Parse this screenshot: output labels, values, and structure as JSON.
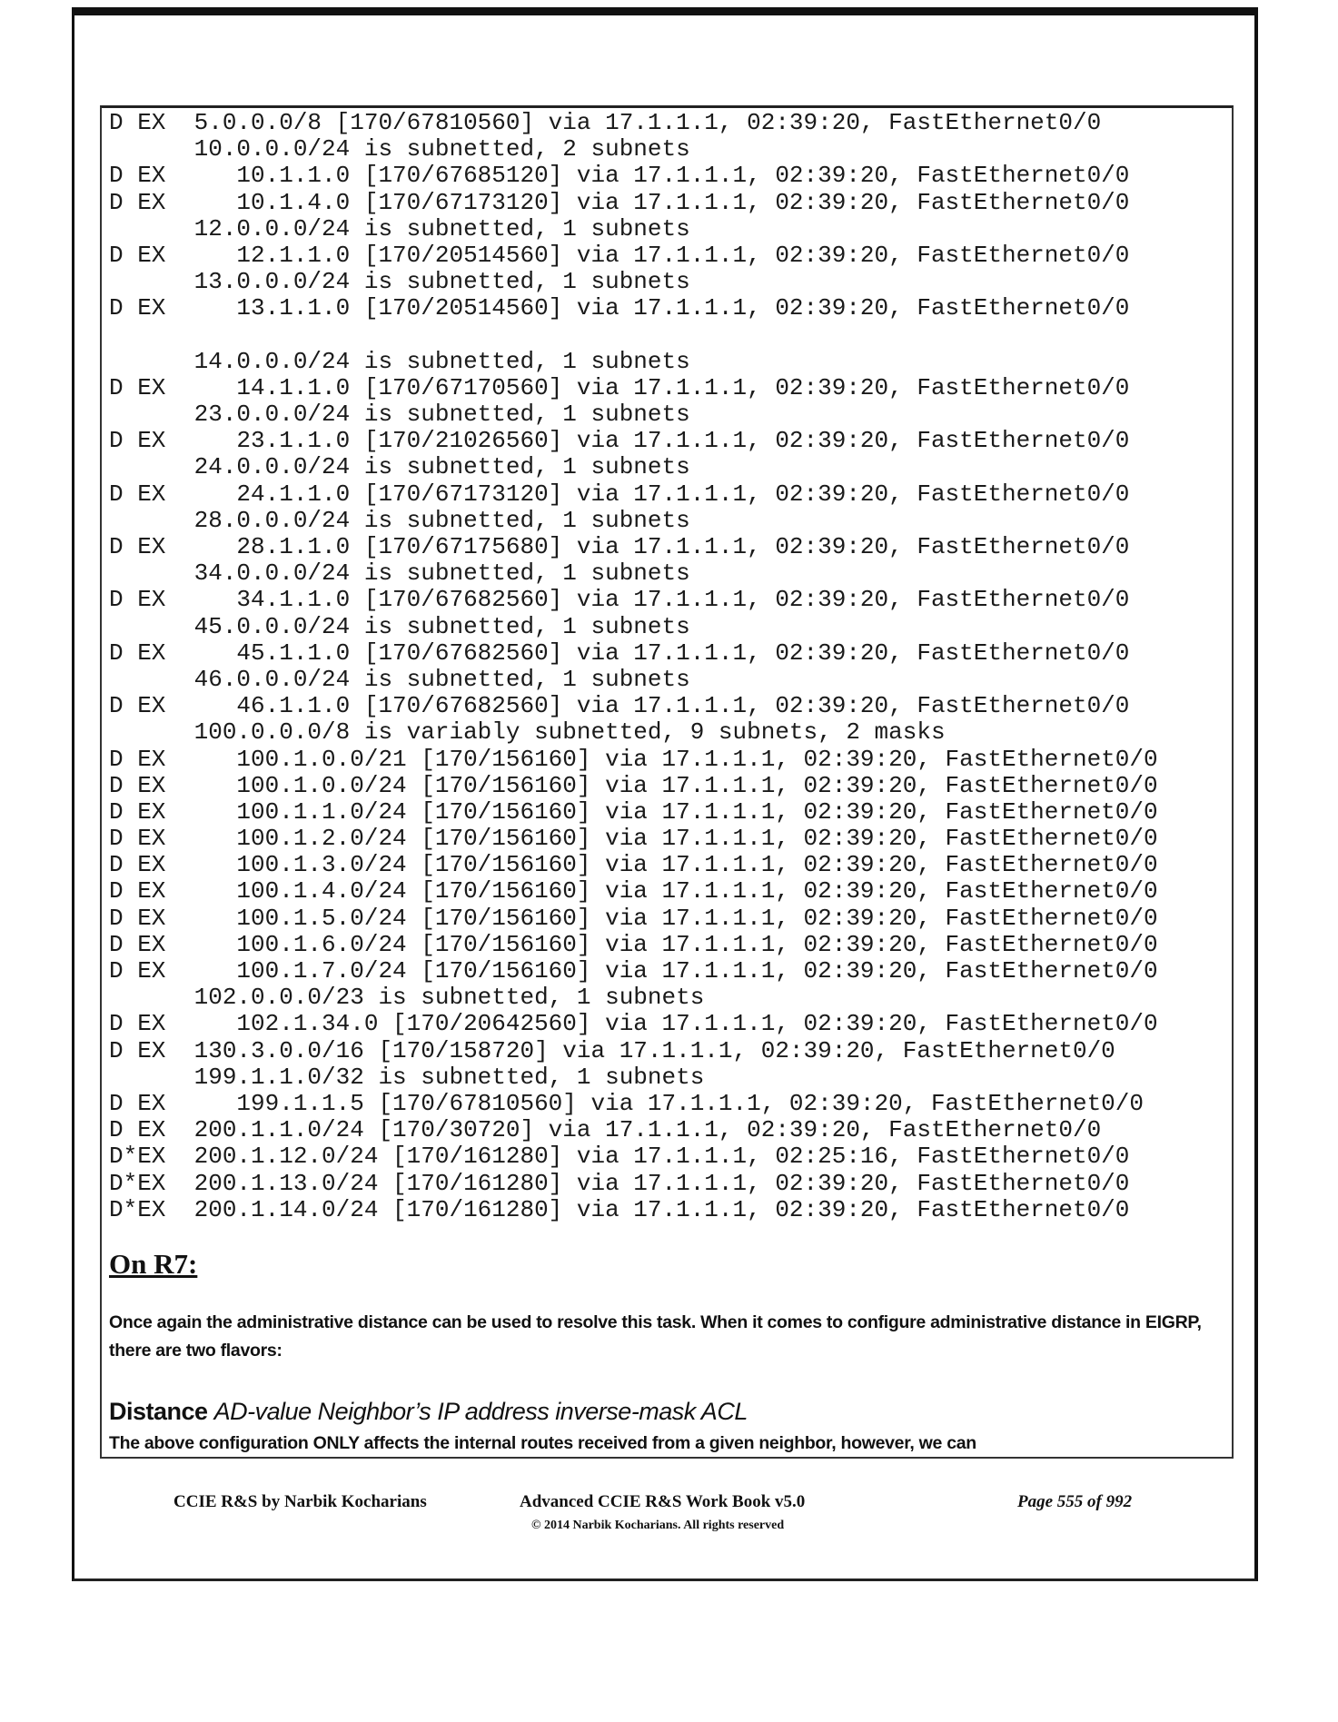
{
  "route_table": {
    "lines": [
      "D EX  5.0.0.0/8 [170/67810560] via 17.1.1.1, 02:39:20, FastEthernet0/0",
      "      10.0.0.0/24 is subnetted, 2 subnets",
      "D EX     10.1.1.0 [170/67685120] via 17.1.1.1, 02:39:20, FastEthernet0/0",
      "D EX     10.1.4.0 [170/67173120] via 17.1.1.1, 02:39:20, FastEthernet0/0",
      "      12.0.0.0/24 is subnetted, 1 subnets",
      "D EX     12.1.1.0 [170/20514560] via 17.1.1.1, 02:39:20, FastEthernet0/0",
      "      13.0.0.0/24 is subnetted, 1 subnets",
      "D EX     13.1.1.0 [170/20514560] via 17.1.1.1, 02:39:20, FastEthernet0/0",
      "",
      "      14.0.0.0/24 is subnetted, 1 subnets",
      "D EX     14.1.1.0 [170/67170560] via 17.1.1.1, 02:39:20, FastEthernet0/0",
      "      23.0.0.0/24 is subnetted, 1 subnets",
      "D EX     23.1.1.0 [170/21026560] via 17.1.1.1, 02:39:20, FastEthernet0/0",
      "      24.0.0.0/24 is subnetted, 1 subnets",
      "D EX     24.1.1.0 [170/67173120] via 17.1.1.1, 02:39:20, FastEthernet0/0",
      "      28.0.0.0/24 is subnetted, 1 subnets",
      "D EX     28.1.1.0 [170/67175680] via 17.1.1.1, 02:39:20, FastEthernet0/0",
      "      34.0.0.0/24 is subnetted, 1 subnets",
      "D EX     34.1.1.0 [170/67682560] via 17.1.1.1, 02:39:20, FastEthernet0/0",
      "      45.0.0.0/24 is subnetted, 1 subnets",
      "D EX     45.1.1.0 [170/67682560] via 17.1.1.1, 02:39:20, FastEthernet0/0",
      "      46.0.0.0/24 is subnetted, 1 subnets",
      "D EX     46.1.1.0 [170/67682560] via 17.1.1.1, 02:39:20, FastEthernet0/0",
      "      100.0.0.0/8 is variably subnetted, 9 subnets, 2 masks",
      "D EX     100.1.0.0/21 [170/156160] via 17.1.1.1, 02:39:20, FastEthernet0/0",
      "D EX     100.1.0.0/24 [170/156160] via 17.1.1.1, 02:39:20, FastEthernet0/0",
      "D EX     100.1.1.0/24 [170/156160] via 17.1.1.1, 02:39:20, FastEthernet0/0",
      "D EX     100.1.2.0/24 [170/156160] via 17.1.1.1, 02:39:20, FastEthernet0/0",
      "D EX     100.1.3.0/24 [170/156160] via 17.1.1.1, 02:39:20, FastEthernet0/0",
      "D EX     100.1.4.0/24 [170/156160] via 17.1.1.1, 02:39:20, FastEthernet0/0",
      "D EX     100.1.5.0/24 [170/156160] via 17.1.1.1, 02:39:20, FastEthernet0/0",
      "D EX     100.1.6.0/24 [170/156160] via 17.1.1.1, 02:39:20, FastEthernet0/0",
      "D EX     100.1.7.0/24 [170/156160] via 17.1.1.1, 02:39:20, FastEthernet0/0",
      "      102.0.0.0/23 is subnetted, 1 subnets",
      "D EX     102.1.34.0 [170/20642560] via 17.1.1.1, 02:39:20, FastEthernet0/0",
      "D EX  130.3.0.0/16 [170/158720] via 17.1.1.1, 02:39:20, FastEthernet0/0",
      "      199.1.1.0/32 is subnetted, 1 subnets",
      "D EX     199.1.1.5 [170/67810560] via 17.1.1.1, 02:39:20, FastEthernet0/0",
      "D EX  200.1.1.0/24 [170/30720] via 17.1.1.1, 02:39:20, FastEthernet0/0",
      "D*EX  200.1.12.0/24 [170/161280] via 17.1.1.1, 02:25:16, FastEthernet0/0",
      "D*EX  200.1.13.0/24 [170/161280] via 17.1.1.1, 02:39:20, FastEthernet0/0",
      "D*EX  200.1.14.0/24 [170/161280] via 17.1.1.1, 02:39:20, FastEthernet0/0"
    ]
  },
  "section": {
    "heading": "On R7:",
    "paragraph": "Once again the administrative distance can be used to resolve this task. When it comes to configure administrative distance in EIGRP, there are two flavors:",
    "syntax_keyword": "Distance",
    "syntax_args": "AD-value Neighbor’s IP address inverse-mask ACL",
    "last_line": "The above configuration ONLY affects the internal routes received from a given neighbor, however, we can"
  },
  "footer": {
    "left": "CCIE R&S by Narbik Kocharians",
    "center": "Advanced CCIE R&S Work Book v5.0",
    "copyright": "© 2014 Narbik Kocharians. All rights reserved",
    "page": "Page 555 of 992"
  }
}
